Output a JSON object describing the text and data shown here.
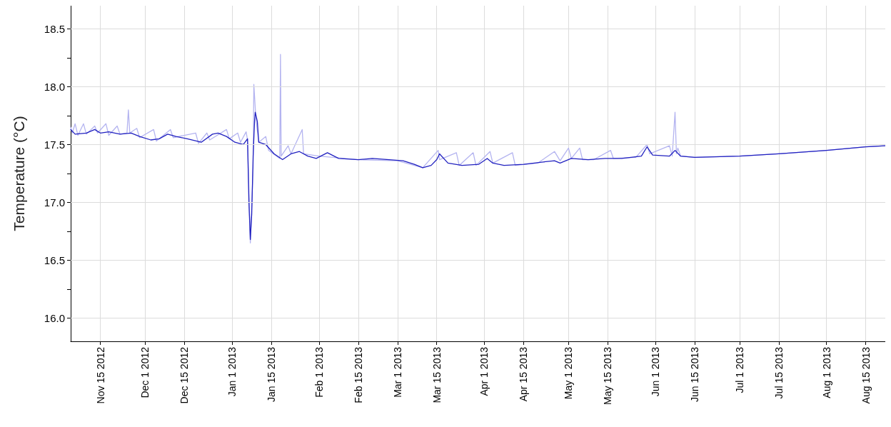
{
  "chart_data": {
    "type": "line",
    "ylabel": "Temperature (°C)",
    "xlim": [
      "2012-11-04T10:00",
      "2013-08-22"
    ],
    "ylim": [
      15.8,
      18.7
    ],
    "xticks": [
      {
        "value": "2012-11-15",
        "label": "Nov 15 2012"
      },
      {
        "value": "2012-12-01",
        "label": "Dec 1 2012"
      },
      {
        "value": "2012-12-15",
        "label": "Dec 15 2012"
      },
      {
        "value": "2013-01-01",
        "label": "Jan 1 2013"
      },
      {
        "value": "2013-01-15",
        "label": "Jan 15 2013"
      },
      {
        "value": "2013-02-01",
        "label": "Feb 1 2013"
      },
      {
        "value": "2013-02-15",
        "label": "Feb 15 2013"
      },
      {
        "value": "2013-03-01",
        "label": "Mar 1 2013"
      },
      {
        "value": "2013-03-15",
        "label": "Mar 15 2013"
      },
      {
        "value": "2013-04-01",
        "label": "Apr 1 2013"
      },
      {
        "value": "2013-04-15",
        "label": "Apr 15 2013"
      },
      {
        "value": "2013-05-01",
        "label": "May 1 2013"
      },
      {
        "value": "2013-05-15",
        "label": "May 15 2013"
      },
      {
        "value": "2013-06-01",
        "label": "Jun 1 2013"
      },
      {
        "value": "2013-06-15",
        "label": "Jun 15 2013"
      },
      {
        "value": "2013-07-01",
        "label": "Jul 1 2013"
      },
      {
        "value": "2013-07-15",
        "label": "Jul 15 2013"
      },
      {
        "value": "2013-08-01",
        "label": "Aug 1 2013"
      },
      {
        "value": "2013-08-15",
        "label": "Aug 15 2013"
      }
    ],
    "yticks": [
      {
        "value": 16.0,
        "label": "16.0"
      },
      {
        "value": 16.25,
        "label": null
      },
      {
        "value": 16.5,
        "label": "16.5"
      },
      {
        "value": 16.75,
        "label": null
      },
      {
        "value": 17.0,
        "label": "17.0"
      },
      {
        "value": 17.25,
        "label": null
      },
      {
        "value": 17.5,
        "label": "17.5"
      },
      {
        "value": 17.75,
        "label": null
      },
      {
        "value": 18.0,
        "label": "18.0"
      },
      {
        "value": 18.25,
        "label": null
      },
      {
        "value": 18.5,
        "label": "18.5"
      }
    ],
    "grid": true,
    "marker": "none",
    "line_style": "solid",
    "series": [
      {
        "color": "#b4b4f0",
        "x": [
          "2012-11-04T10:00",
          "2012-11-05",
          "2012-11-06",
          "2012-11-07",
          "2012-11-09",
          "2012-11-10",
          "2012-11-13",
          "2012-11-14",
          "2012-11-17",
          "2012-11-18",
          "2012-11-21",
          "2012-11-22",
          "2012-11-24T12:00",
          "2012-11-25",
          "2012-11-25T12:00",
          "2012-11-28",
          "2012-11-29",
          "2012-12-04",
          "2012-12-05",
          "2012-12-10",
          "2012-12-11",
          "2012-12-19",
          "2012-12-20",
          "2012-12-23",
          "2012-12-24",
          "2012-12-30",
          "2012-12-31",
          "2013-01-03",
          "2013-01-04",
          "2013-01-06",
          "2013-01-06T12:00",
          "2013-01-07T12:00",
          "2013-01-08T12:00",
          "2013-01-08T18:00",
          "2013-01-09T12:00",
          "2013-01-10T12:00",
          "2013-01-13",
          "2013-01-14",
          "2013-01-18",
          "2013-01-18T06:00",
          "2013-01-18T12:00",
          "2013-01-21",
          "2013-01-22",
          "2013-01-26",
          "2013-01-26T12:00",
          "2013-02-01",
          "2013-02-15",
          "2013-03-01",
          "2013-03-10",
          "2013-03-15T12:00",
          "2013-03-16",
          "2013-03-22",
          "2013-03-23",
          "2013-03-28",
          "2013-03-29",
          "2013-04-03",
          "2013-04-04",
          "2013-04-11",
          "2013-04-12",
          "2013-04-20",
          "2013-04-26",
          "2013-04-28",
          "2013-05-01",
          "2013-05-02",
          "2013-05-05",
          "2013-05-06",
          "2013-05-10",
          "2013-05-16",
          "2013-05-17",
          "2013-05-25",
          "2013-05-29",
          "2013-05-30",
          "2013-06-06",
          "2013-06-07",
          "2013-06-08",
          "2013-06-08T12:00",
          "2013-06-09",
          "2013-06-10",
          "2013-06-15",
          "2013-07-01",
          "2013-07-15",
          "2013-08-01",
          "2013-08-15",
          "2013-08-22"
        ],
        "values": [
          17.65,
          17.6,
          17.68,
          17.58,
          17.68,
          17.59,
          17.66,
          17.6,
          17.68,
          17.58,
          17.66,
          17.59,
          17.6,
          17.8,
          17.6,
          17.64,
          17.56,
          17.63,
          17.53,
          17.63,
          17.56,
          17.6,
          17.51,
          17.6,
          17.54,
          17.63,
          17.55,
          17.6,
          17.52,
          17.61,
          17.54,
          16.65,
          17.3,
          18.02,
          17.72,
          17.52,
          17.57,
          17.45,
          17.38,
          18.28,
          17.4,
          17.49,
          17.42,
          17.63,
          17.42,
          17.4,
          17.37,
          17.36,
          17.3,
          17.45,
          17.37,
          17.43,
          17.32,
          17.43,
          17.32,
          17.44,
          17.34,
          17.43,
          17.32,
          17.34,
          17.44,
          17.36,
          17.47,
          17.38,
          17.47,
          17.37,
          17.37,
          17.45,
          17.38,
          17.39,
          17.5,
          17.42,
          17.49,
          17.4,
          17.78,
          17.42,
          17.47,
          17.4,
          17.39,
          17.4,
          17.42,
          17.45,
          17.48,
          17.49
        ]
      },
      {
        "color": "#2222c0",
        "x": [
          "2012-11-04T10:00",
          "2012-11-06",
          "2012-11-10",
          "2012-11-13",
          "2012-11-15",
          "2012-11-18",
          "2012-11-22",
          "2012-11-26",
          "2012-11-29",
          "2012-12-03",
          "2012-12-06",
          "2012-12-09",
          "2012-12-12",
          "2012-12-16",
          "2012-12-21",
          "2012-12-25",
          "2012-12-27",
          "2012-12-30",
          "2013-01-02",
          "2013-01-05",
          "2013-01-06T12:00",
          "2013-01-07",
          "2013-01-07T12:00",
          "2013-01-08",
          "2013-01-08T12:00",
          "2013-01-09",
          "2013-01-09T06:00",
          "2013-01-10",
          "2013-01-10T12:00",
          "2013-01-13",
          "2013-01-16",
          "2013-01-19",
          "2013-01-22",
          "2013-01-25",
          "2013-01-28",
          "2013-01-31",
          "2013-02-04",
          "2013-02-08",
          "2013-02-15",
          "2013-02-20",
          "2013-02-26",
          "2013-03-03",
          "2013-03-07",
          "2013-03-10",
          "2013-03-13",
          "2013-03-15",
          "2013-03-16",
          "2013-03-19",
          "2013-03-24",
          "2013-03-30",
          "2013-04-02",
          "2013-04-04",
          "2013-04-08",
          "2013-04-15",
          "2013-04-22",
          "2013-04-26",
          "2013-04-28",
          "2013-05-02",
          "2013-05-08",
          "2013-05-14",
          "2013-05-20",
          "2013-05-27",
          "2013-05-29",
          "2013-05-31",
          "2013-06-06",
          "2013-06-08",
          "2013-06-10",
          "2013-06-15",
          "2013-07-01",
          "2013-07-15",
          "2013-08-01",
          "2013-08-15",
          "2013-08-22"
        ],
        "values": [
          17.63,
          17.59,
          17.6,
          17.63,
          17.6,
          17.61,
          17.59,
          17.6,
          17.57,
          17.54,
          17.55,
          17.59,
          17.57,
          17.55,
          17.52,
          17.59,
          17.6,
          17.57,
          17.52,
          17.5,
          17.55,
          17.0,
          16.68,
          16.9,
          17.4,
          17.7,
          17.78,
          17.7,
          17.52,
          17.5,
          17.42,
          17.37,
          17.42,
          17.44,
          17.4,
          17.38,
          17.43,
          17.38,
          17.37,
          17.38,
          17.37,
          17.36,
          17.33,
          17.3,
          17.32,
          17.37,
          17.42,
          17.34,
          17.32,
          17.33,
          17.38,
          17.34,
          17.32,
          17.33,
          17.35,
          17.36,
          17.34,
          17.38,
          17.37,
          17.38,
          17.38,
          17.4,
          17.48,
          17.41,
          17.4,
          17.45,
          17.4,
          17.39,
          17.4,
          17.42,
          17.45,
          17.48,
          17.49
        ]
      }
    ]
  }
}
